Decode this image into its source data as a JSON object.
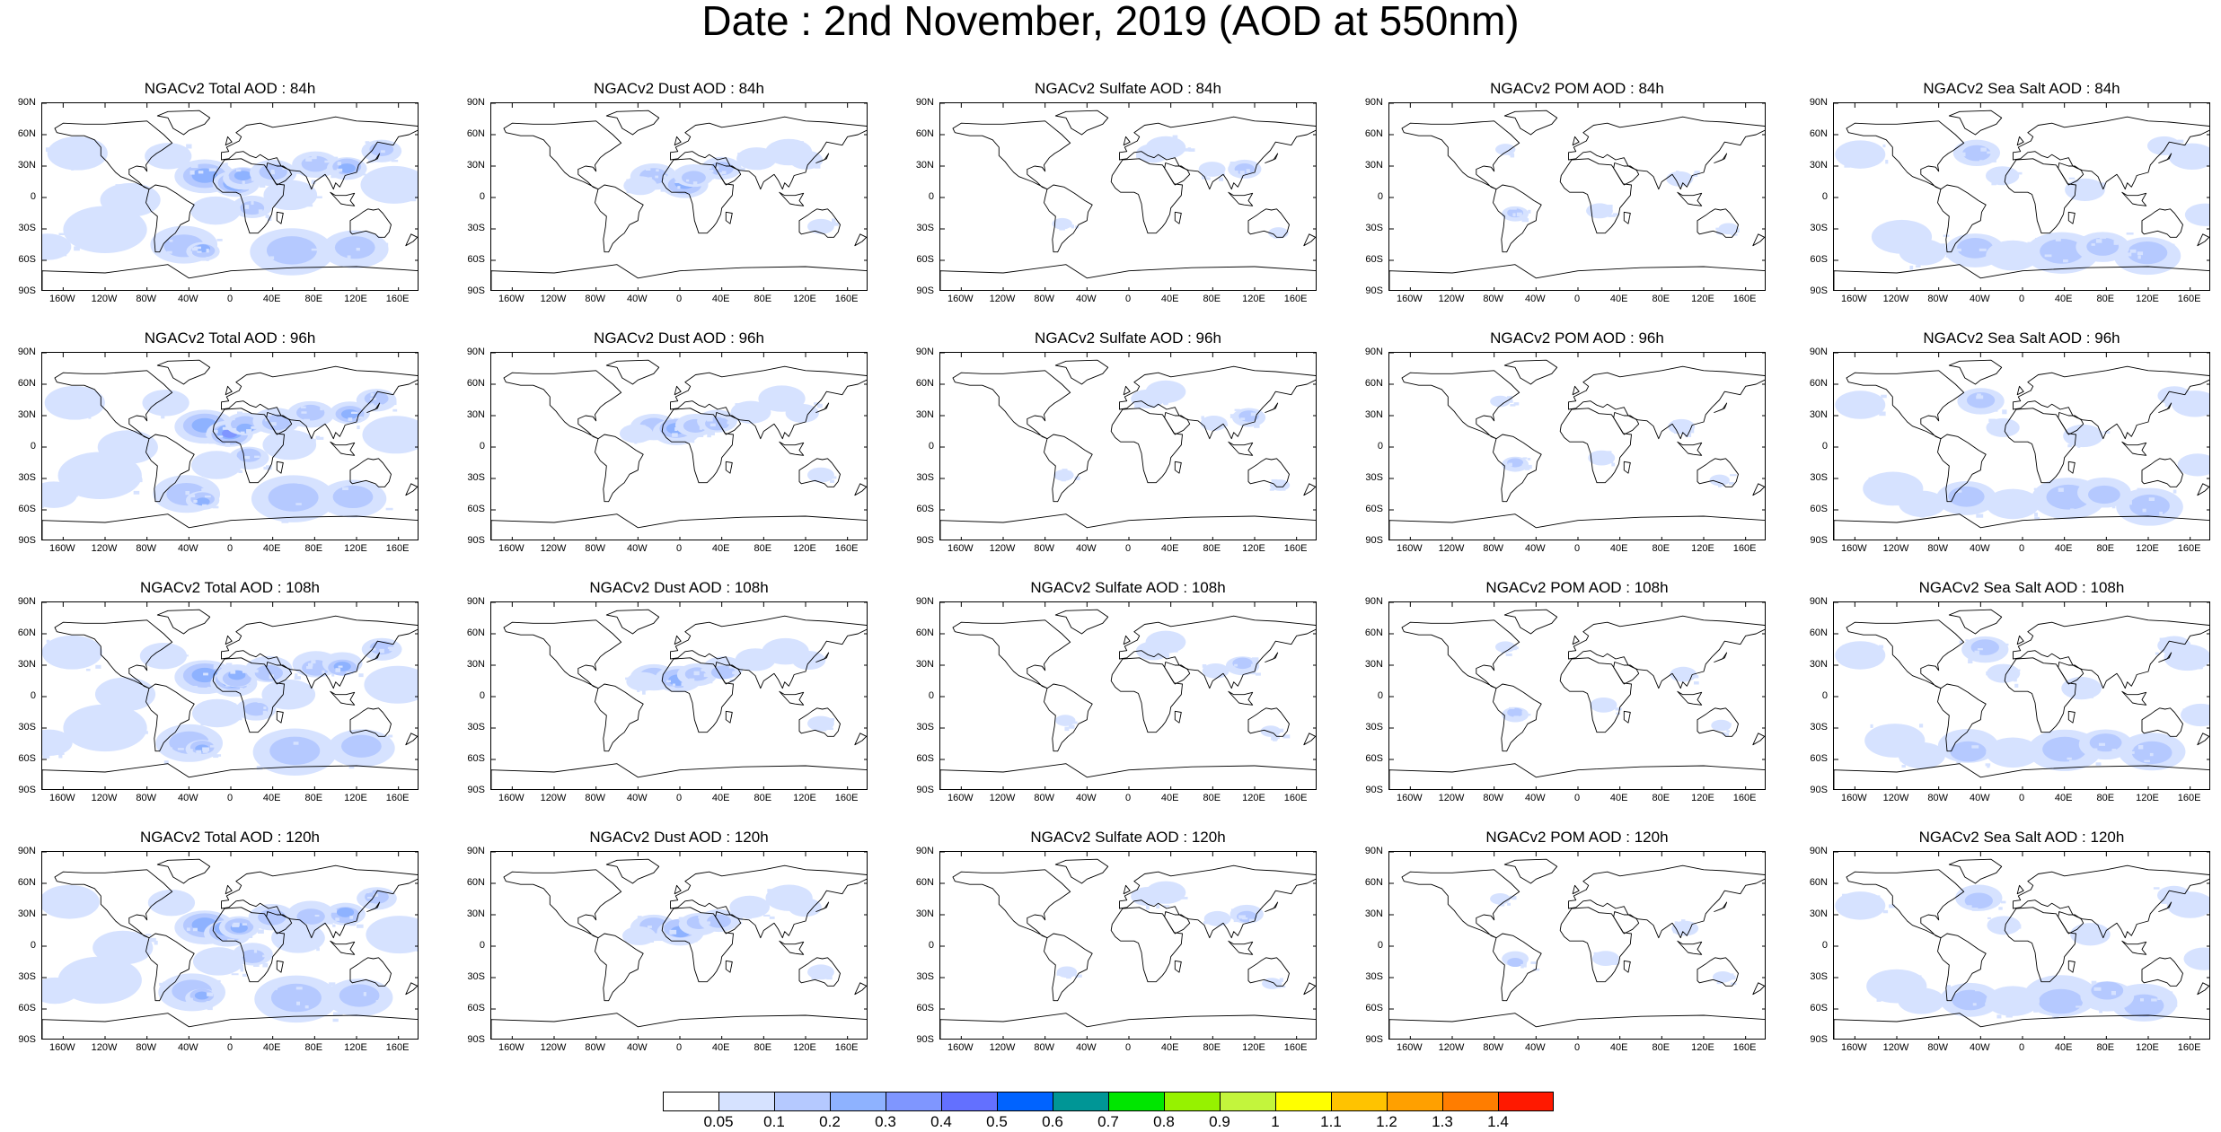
{
  "title": "Date : 2nd November, 2019 (AOD at 550nm)",
  "lat_ticks": [
    "90N",
    "60N",
    "30N",
    "0",
    "30S",
    "60S",
    "90S"
  ],
  "lon_ticks": [
    "160W",
    "120W",
    "80W",
    "40W",
    "0",
    "40E",
    "80E",
    "120E",
    "160E"
  ],
  "lon_tick_values": [
    -160,
    -120,
    -80,
    -40,
    0,
    40,
    80,
    120,
    160
  ],
  "lat_tick_values": [
    90,
    60,
    30,
    0,
    -30,
    -60,
    -90
  ],
  "rows": [
    {
      "panels": [
        {
          "title": "NGACv2 Total AOD : 84h",
          "species": "total"
        },
        {
          "title": "NGACv2 Dust AOD : 84h",
          "species": "dust"
        },
        {
          "title": "NGACv2 Sulfate AOD : 84h",
          "species": "sulfate"
        },
        {
          "title": "NGACv2 POM AOD : 84h",
          "species": "pom"
        },
        {
          "title": "NGACv2 Sea Salt AOD : 84h",
          "species": "seasalt"
        }
      ]
    },
    {
      "panels": [
        {
          "title": "NGACv2 Total AOD : 96h",
          "species": "total"
        },
        {
          "title": "NGACv2 Dust AOD : 96h",
          "species": "dust"
        },
        {
          "title": "NGACv2 Sulfate AOD : 96h",
          "species": "sulfate"
        },
        {
          "title": "NGACv2 POM AOD : 96h",
          "species": "pom"
        },
        {
          "title": "NGACv2 Sea Salt AOD : 96h",
          "species": "seasalt"
        }
      ]
    },
    {
      "panels": [
        {
          "title": "NGACv2 Total AOD : 108h",
          "species": "total"
        },
        {
          "title": "NGACv2 Dust AOD : 108h",
          "species": "dust"
        },
        {
          "title": "NGACv2 Sulfate AOD : 108h",
          "species": "sulfate"
        },
        {
          "title": "NGACv2 POM AOD : 108h",
          "species": "pom"
        },
        {
          "title": "NGACv2 Sea Salt AOD : 108h",
          "species": "seasalt"
        }
      ]
    },
    {
      "panels": [
        {
          "title": "NGACv2 Total AOD : 120h",
          "species": "total"
        },
        {
          "title": "NGACv2 Dust AOD : 120h",
          "species": "dust"
        },
        {
          "title": "NGACv2 Sulfate AOD : 120h",
          "species": "sulfate"
        },
        {
          "title": "NGACv2 POM AOD : 120h",
          "species": "pom"
        },
        {
          "title": "NGACv2 Sea Salt  AOD : 120h",
          "species": "seasalt"
        }
      ]
    }
  ],
  "colorbar": {
    "colors": [
      "#ffffff",
      "#d6e2ff",
      "#b5c9ff",
      "#8eb2ff",
      "#7f96ff",
      "#6370ff",
      "#0063ff",
      "#009696",
      "#00e600",
      "#96f200",
      "#c3f53c",
      "#ffff00",
      "#ffc300",
      "#ffa000",
      "#ff7d00",
      "#ff1900"
    ],
    "labels": [
      "0.05",
      "0.1",
      "0.2",
      "0.3",
      "0.4",
      "0.5",
      "0.6",
      "0.7",
      "0.8",
      "0.9",
      "1",
      "1.1",
      "1.2",
      "1.3",
      "1.4"
    ]
  }
}
